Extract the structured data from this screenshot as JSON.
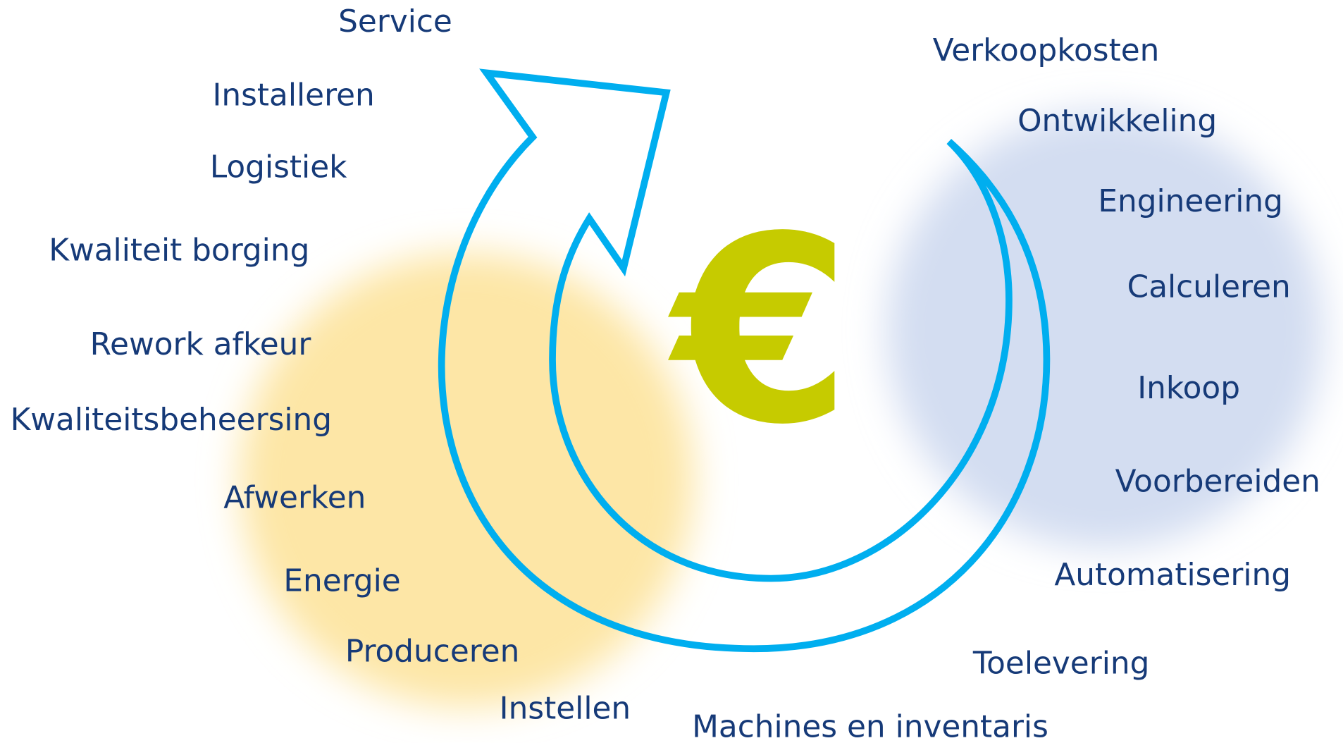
{
  "symbol": "€",
  "labels": [
    "Service",
    "Installeren",
    "Logistiek",
    "Kwaliteit borging",
    "Rework afkeur",
    "Kwaliteitsbeheersing",
    "Afwerken",
    "Energie",
    "Produceren",
    "Instellen",
    "Machines en inventaris",
    "Toelevering",
    "Automatisering",
    "Voorbereiden",
    "Inkoop",
    "Calculeren",
    "Engineering",
    "Ontwikkeling",
    "Verkoopkosten"
  ]
}
